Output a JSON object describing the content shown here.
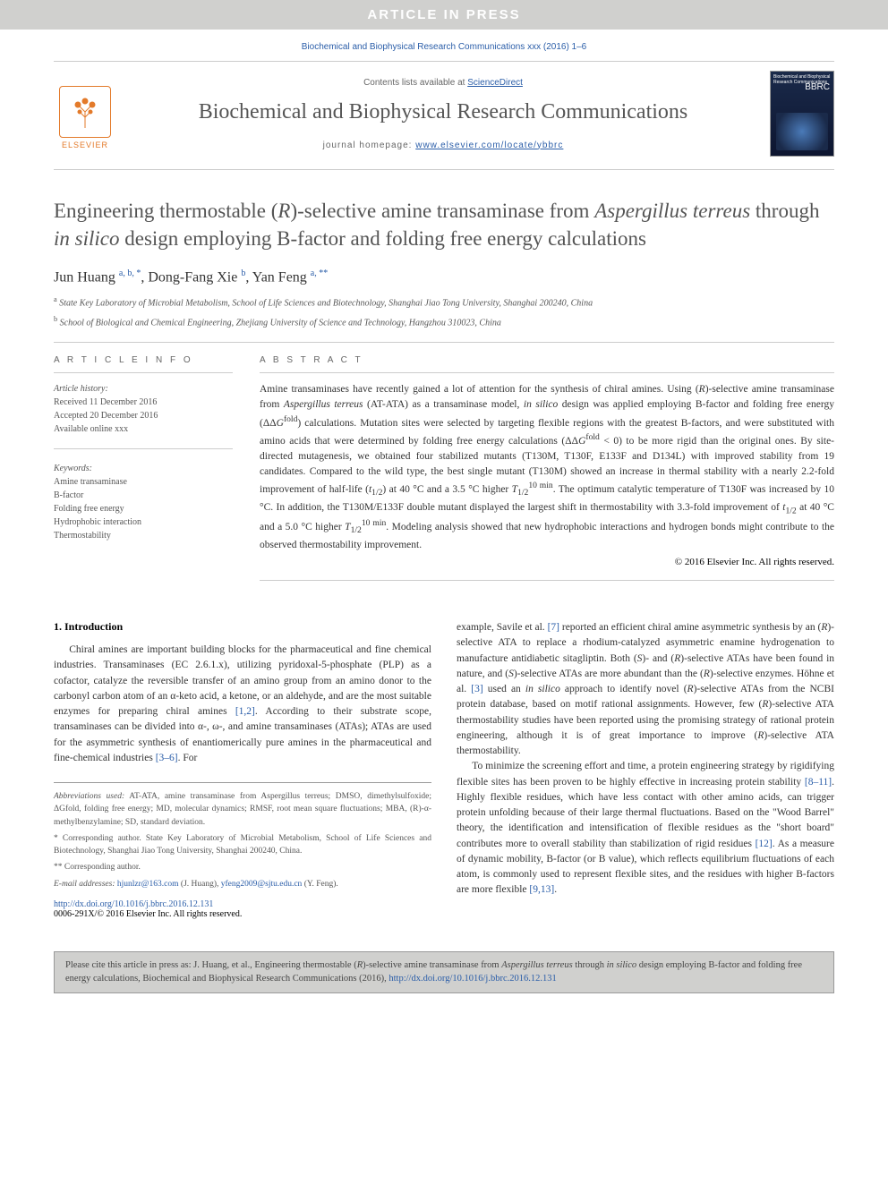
{
  "banner": "ARTICLE IN PRESS",
  "citation_top": "Biochemical and Biophysical Research Communications xxx (2016) 1–6",
  "masthead": {
    "contents_prefix": "Contents lists available at ",
    "contents_link": "ScienceDirect",
    "journal_name": "Biochemical and Biophysical Research Communications",
    "homepage_prefix": "journal homepage: ",
    "homepage_url": "www.elsevier.com/locate/ybbrc",
    "elsevier_label": "ELSEVIER",
    "cover_bbrc": "BBRC",
    "cover_title": "Biochemical and Biophysical Research Communications"
  },
  "title_html": "Engineering thermostable (<em>R</em>)-selective amine transaminase from <em>Aspergillus terreus</em> through <em>in silico</em> design employing B-factor and folding free energy calculations",
  "authors_html": "Jun Huang <sup>a, b, *</sup>, Dong-Fang Xie <sup>b</sup>, Yan Feng <sup>a, **</sup>",
  "affiliations": [
    {
      "sup": "a",
      "text": "State Key Laboratory of Microbial Metabolism, School of Life Sciences and Biotechnology, Shanghai Jiao Tong University, Shanghai 200240, China"
    },
    {
      "sup": "b",
      "text": "School of Biological and Chemical Engineering, Zhejiang University of Science and Technology, Hangzhou 310023, China"
    }
  ],
  "article_info": {
    "heading": "A R T I C L E   I N F O",
    "history_label": "Article history:",
    "history": [
      "Received 11 December 2016",
      "Accepted 20 December 2016",
      "Available online xxx"
    ],
    "keywords_label": "Keywords:",
    "keywords": [
      "Amine transaminase",
      "B-factor",
      "Folding free energy",
      "Hydrophobic interaction",
      "Thermostability"
    ]
  },
  "abstract": {
    "heading": "A B S T R A C T",
    "text_html": "Amine transaminases have recently gained a lot of attention for the synthesis of chiral amines. Using (<em>R</em>)-selective amine transaminase from <em>Aspergillus terreus</em> (AT-ATA) as a transaminase model, <em>in silico</em> design was applied employing B-factor and folding free energy (ΔΔ<em>G</em><sup>fold</sup>) calculations. Mutation sites were selected by targeting flexible regions with the greatest B-factors, and were substituted with amino acids that were determined by folding free energy calculations (ΔΔ<em>G</em><sup>fold</sup> < 0) to be more rigid than the original ones. By site-directed mutagenesis, we obtained four stabilized mutants (T130M, T130F, E133F and D134L) with improved stability from 19 candidates. Compared to the wild type, the best single mutant (T130M) showed an increase in thermal stability with a nearly 2.2-fold improvement of half-life (<em>t</em><sub>1/2</sub>) at 40 °C and a 3.5 °C higher <em>T</em><sub>1/2</sub><sup>10 min</sup>. The optimum catalytic temperature of T130F was increased by 10 °C. In addition, the T130M/E133F double mutant displayed the largest shift in thermostability with 3.3-fold improvement of <em>t</em><sub>1/2</sub> at 40 °C and a 5.0 °C higher <em>T</em><sub>1/2</sub><sup>10 min</sup>. Modeling analysis showed that new hydrophobic interactions and hydrogen bonds might contribute to the observed thermostability improvement.",
    "copyright": "© 2016 Elsevier Inc. All rights reserved."
  },
  "intro": {
    "heading": "1. Introduction",
    "col1_html": "<p>Chiral amines are important building blocks for the pharmaceutical and fine chemical industries. Transaminases (EC 2.6.1.x), utilizing pyridoxal-5-phosphate (PLP) as a cofactor, catalyze the reversible transfer of an amino group from an amino donor to the carbonyl carbon atom of an α-keto acid, a ketone, or an aldehyde, and are the most suitable enzymes for preparing chiral amines <a href='#'>[1,2]</a>. According to their substrate scope, transaminases can be divided into α-, ω-, and amine transaminases (ATAs); ATAs are used for the asymmetric synthesis of enantiomerically pure amines in the pharmaceutical and fine-chemical industries <a href='#'>[3–6]</a>. For</p>",
    "col2_html": "<p style='text-indent:0'>example, Savile et al. <a href='#'>[7]</a> reported an efficient chiral amine asymmetric synthesis by an (<em>R</em>)-selective ATA to replace a rhodium-catalyzed asymmetric enamine hydrogenation to manufacture antidiabetic sitagliptin. Both (<em>S</em>)- and (<em>R</em>)-selective ATAs have been found in nature, and (<em>S</em>)-selective ATAs are more abundant than the (<em>R</em>)-selective enzymes. Höhne et al. <a href='#'>[3]</a> used an <em>in silico</em> approach to identify novel (<em>R</em>)-selective ATAs from the NCBI protein database, based on motif rational assignments. However, few (<em>R</em>)-selective ATA thermostability studies have been reported using the promising strategy of rational protein engineering, although it is of great importance to improve (<em>R</em>)-selective ATA thermostability.</p><p>To minimize the screening effort and time, a protein engineering strategy by rigidifying flexible sites has been proven to be highly effective in increasing protein stability <a href='#'>[8–11]</a>. Highly flexible residues, which have less contact with other amino acids, can trigger protein unfolding because of their large thermal fluctuations. Based on the \"Wood Barrel\" theory, the identification and intensification of flexible residues as the \"short board\" contributes more to overall stability than stabilization of rigid residues <a href='#'>[12]</a>. As a measure of dynamic mobility, B-factor (or B value), which reflects equilibrium fluctuations of each atom, is commonly used to represent flexible sites, and the residues with higher B-factors are more flexible <a href='#'>[9,13]</a>.</p>"
  },
  "footnotes": {
    "abbrev_label": "Abbreviations used:",
    "abbrev_text": " AT-ATA, amine transaminase from Aspergillus terreus; DMSO, dimethylsulfoxide; ΔGfold, folding free energy; MD, molecular dynamics; RMSF, root mean square fluctuations; MBA, (R)-α-methylbenzylamine; SD, standard deviation.",
    "corr1": "* Corresponding author. State Key Laboratory of Microbial Metabolism, School of Life Sciences and Biotechnology, Shanghai Jiao Tong University, Shanghai 200240, China.",
    "corr2": "** Corresponding author.",
    "email_label": "E-mail addresses: ",
    "email1": "hjunlzr@163.com",
    "email1_name": " (J. Huang), ",
    "email2": "yfeng2009@sjtu.edu.cn",
    "email2_name": " (Y. Feng)."
  },
  "doi": {
    "url": "http://dx.doi.org/10.1016/j.bbrc.2016.12.131",
    "issn_line": "0006-291X/© 2016 Elsevier Inc. All rights reserved."
  },
  "citation_box_html": "Please cite this article in press as: J. Huang, et al., Engineering thermostable (<em>R</em>)-selective amine transaminase from <em>Aspergillus terreus</em> through <em>in silico</em> design employing B-factor and folding free energy calculations, Biochemical and Biophysical Research Communications (2016), <a href='#'>http://dx.doi.org/10.1016/j.bbrc.2016.12.131</a>",
  "colors": {
    "link": "#2a5da8",
    "banner_bg": "#d0d0ce",
    "elsevier_orange": "#e37a2a",
    "text": "#333333",
    "muted": "#555555"
  }
}
